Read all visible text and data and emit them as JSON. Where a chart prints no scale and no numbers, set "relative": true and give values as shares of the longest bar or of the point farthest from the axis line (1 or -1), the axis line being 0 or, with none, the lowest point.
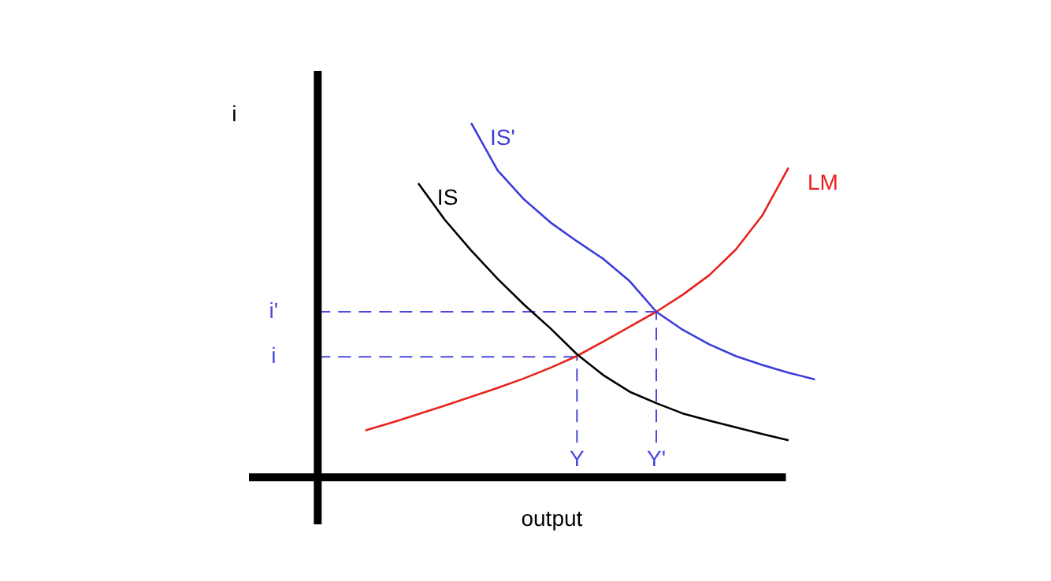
{
  "chart_data": {
    "type": "line",
    "ylabel": "i",
    "xlabel": "output",
    "line_style": "solid",
    "categories": [
      null,
      null,
      null,
      null,
      null,
      null,
      null,
      null,
      null,
      "Y",
      null,
      null,
      "Y'",
      null,
      null,
      null,
      null,
      null,
      null,
      null
    ],
    "relative": true,
    "series": [
      {
        "name": "IS",
        "color": "#000000",
        "values": [
          null,
          null,
          null,
          0.83,
          0.727,
          0.64,
          0.56,
          0.487,
          0.42,
          0.347,
          0.288,
          0.241,
          0.209,
          0.18,
          0.16,
          0.141,
          0.122,
          0.104,
          null,
          null
        ]
      },
      {
        "name": "IS'",
        "color": "#3c3cdc",
        "values": [
          null,
          null,
          null,
          null,
          null,
          1.0,
          0.866,
          0.784,
          0.719,
          0.666,
          0.616,
          0.553,
          0.467,
          0.416,
          0.375,
          0.342,
          0.317,
          0.295,
          0.276,
          null
        ]
      },
      {
        "name": "LM",
        "color": "#e8231e",
        "values": [
          null,
          0.132,
          0.154,
          0.178,
          0.202,
          0.227,
          0.252,
          0.279,
          0.309,
          0.342,
          0.383,
          0.425,
          0.467,
          0.515,
          0.57,
          0.642,
          0.738,
          0.874,
          null,
          null
        ]
      }
    ],
    "ref_lines": [
      {
        "axis": "y",
        "value": 0.34,
        "label": "i",
        "color": "#4a4ae0",
        "line_style": "dashed"
      },
      {
        "axis": "y",
        "value": 0.467,
        "label": "i'",
        "color": "#4a4ae0",
        "line_style": "dashed"
      },
      {
        "axis": "x",
        "value": "Y",
        "color": "#4a4ae0",
        "line_style": "dashed"
      },
      {
        "axis": "x",
        "value": "Y'",
        "color": "#4a4ae0",
        "line_style": "dashed"
      }
    ]
  }
}
